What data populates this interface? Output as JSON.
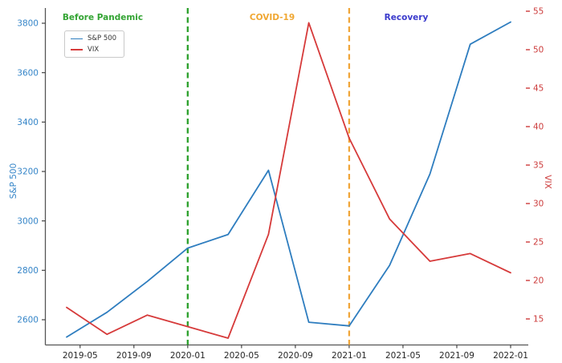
{
  "chart_data": {
    "type": "line",
    "title": "",
    "grid": false,
    "x": [
      "2019-04",
      "2019-07",
      "2019-10",
      "2020-01",
      "2020-04",
      "2020-07",
      "2020-10",
      "2021-01",
      "2021-04",
      "2021-07",
      "2021-10",
      "2022-01"
    ],
    "x_tick_labels": [
      "2019-05",
      "2019-09",
      "2020-01",
      "2020-05",
      "2020-09",
      "2021-01",
      "2021-05",
      "2021-09",
      "2022-01"
    ],
    "series": [
      {
        "name": "S&P 500",
        "axis": "left",
        "color": "#2e7dbf",
        "values": [
          2530,
          2630,
          2755,
          2890,
          2945,
          3205,
          2590,
          2575,
          2820,
          3190,
          3715,
          3805
        ]
      },
      {
        "name": "VIX",
        "axis": "right",
        "color": "#d63a3a",
        "values": [
          16.5,
          13,
          15.5,
          14,
          12.5,
          26,
          53.5,
          38.5,
          28,
          22.5,
          23.5,
          21
        ]
      }
    ],
    "left_axis": {
      "label": "S&P 500",
      "color": "#3585c8",
      "ticks": [
        2600,
        2800,
        3000,
        3200,
        3400,
        3600,
        3800
      ],
      "range": [
        2500,
        3865
      ]
    },
    "right_axis": {
      "label": "VIX",
      "color": "#cc3b3b",
      "ticks": [
        15,
        20,
        25,
        30,
        35,
        40,
        45,
        50,
        55
      ],
      "range": [
        11.6,
        55.5
      ]
    },
    "x_axis": {
      "color": "#262626"
    },
    "vlines": [
      {
        "x": "2020-01",
        "color": "#2ca02c",
        "style": "dashed"
      },
      {
        "x": "2021-01",
        "color": "#f0a63a",
        "style": "dashed"
      }
    ],
    "annotations": [
      {
        "text": "Before Pandemic",
        "color": "#33a433"
      },
      {
        "text": "COVID-19",
        "color": "#f0a732"
      },
      {
        "text": "Recovery",
        "color": "#3a3acc"
      }
    ],
    "legend": {
      "position": "upper-left",
      "entries": [
        "S&P 500",
        "VIX"
      ]
    }
  }
}
